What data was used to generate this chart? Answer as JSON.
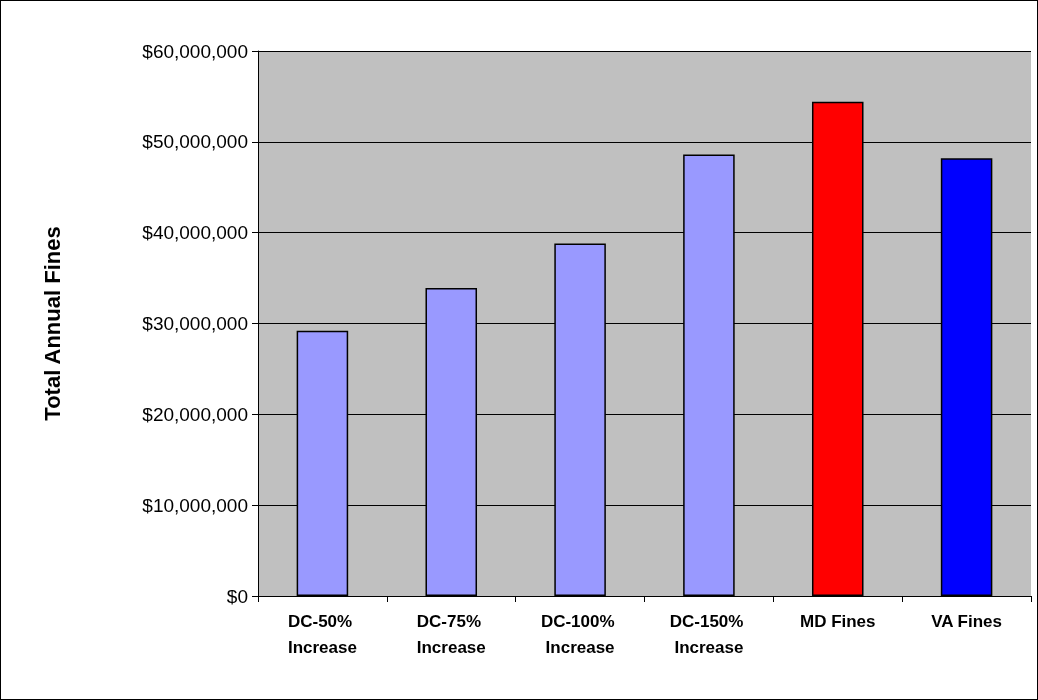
{
  "chart_data": {
    "type": "bar",
    "ylabel": "Total Annual Fines",
    "categories": [
      "DC-50% Increase",
      "DC-75% Increase",
      "DC-100% Increase",
      "DC-150% Increase",
      "MD Fines",
      "VA Fines"
    ],
    "values": [
      29200000,
      33900000,
      38800000,
      48600000,
      54400000,
      48200000
    ],
    "colors": [
      "#9999ff",
      "#9999ff",
      "#9999ff",
      "#9999ff",
      "#ff0000",
      "#0000ff"
    ],
    "ylim": [
      0,
      60000000
    ],
    "yticks": [
      {
        "value": 0,
        "label": "$0"
      },
      {
        "value": 10000000,
        "label": "$10,000,000"
      },
      {
        "value": 20000000,
        "label": "$20,000,000"
      },
      {
        "value": 30000000,
        "label": "$30,000,000"
      },
      {
        "value": 40000000,
        "label": "$40,000,000"
      },
      {
        "value": 50000000,
        "label": "$50,000,000"
      },
      {
        "value": 60000000,
        "label": "$60,000,000"
      }
    ],
    "grid": "y"
  }
}
